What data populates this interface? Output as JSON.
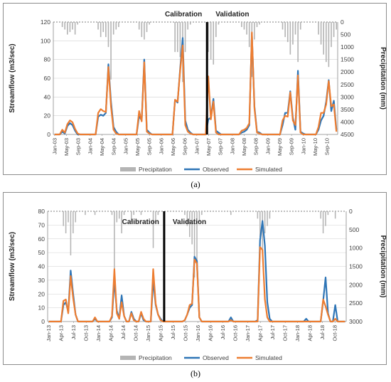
{
  "captions": [
    "(a)",
    "(b)"
  ],
  "colors": {
    "observed": "#2e75b6",
    "simulated": "#ed7d31",
    "precip": "#b4b4b4",
    "divider": "#000000",
    "grid": "#d0d0d0",
    "axis": "#404040"
  },
  "chart_data": [
    {
      "type": "line",
      "ylabel": "Streamflow (m3/sec)",
      "y2label": "Precipitation (mm)",
      "ylim": [
        0,
        120
      ],
      "yticks": [
        0,
        20,
        40,
        60,
        80,
        100,
        120
      ],
      "y2lim": [
        4500,
        0
      ],
      "y2ticks": [
        0,
        500,
        1000,
        1500,
        2000,
        2500,
        3000,
        3500,
        4000,
        4500
      ],
      "y2_inverted": true,
      "x_start": "Jan-03",
      "x_tick_labels": [
        "Jan-03",
        "May-03",
        "Sep-03",
        "Jan-04",
        "May-04",
        "Sep-04",
        "Jan-05",
        "May-05",
        "Sep-05",
        "Jan-06",
        "May-06",
        "Sep-06",
        "Jan-07",
        "May-07",
        "Sep-07",
        "Jan-08",
        "May-08",
        "Sep-08",
        "Jan-09",
        "May-09",
        "Sep-09",
        "Jan-10",
        "May-10",
        "Sep-10"
      ],
      "split_index": 60,
      "split_labels": [
        "Calibration",
        "Validation"
      ],
      "legend": [
        "Precipitation",
        "Observed",
        "Simulated"
      ],
      "legend_position": "bottom",
      "grid": true,
      "series": [
        {
          "name": "Observed",
          "values": [
            0,
            0,
            0,
            3,
            1,
            9,
            12,
            10,
            4,
            0,
            0,
            0,
            0,
            0,
            0,
            0,
            0,
            19,
            21,
            20,
            23,
            75,
            35,
            8,
            3,
            0,
            0,
            0,
            0,
            0,
            0,
            0,
            0,
            20,
            15,
            80,
            5,
            2,
            0,
            0,
            0,
            0,
            0,
            0,
            0,
            0,
            0,
            37,
            34,
            70,
            103,
            15,
            5,
            2,
            0,
            0,
            0,
            0,
            0,
            0,
            16,
            18,
            38,
            4,
            2,
            0,
            0,
            0,
            0,
            0,
            0,
            0,
            0,
            2,
            3,
            5,
            10,
            108,
            30,
            3,
            2,
            0,
            0,
            0,
            0,
            0,
            0,
            0,
            0,
            10,
            23,
            23,
            46,
            18,
            5,
            68,
            3,
            1,
            0,
            0,
            0,
            0,
            0,
            5,
            15,
            20,
            35,
            58,
            25,
            36,
            5
          ]
        },
        {
          "name": "Simulated",
          "values": [
            0,
            0,
            0,
            5,
            2,
            11,
            15,
            13,
            6,
            1,
            0,
            0,
            0,
            0,
            0,
            0,
            0,
            23,
            27,
            25,
            24,
            72,
            30,
            5,
            1,
            0,
            0,
            0,
            0,
            0,
            0,
            0,
            0,
            25,
            14,
            77,
            3,
            1,
            0,
            0,
            0,
            0,
            0,
            0,
            0,
            0,
            0,
            37,
            35,
            68,
            95,
            10,
            3,
            1,
            0,
            0,
            0,
            0,
            0,
            0,
            62,
            16,
            35,
            2,
            0,
            0,
            0,
            0,
            0,
            0,
            0,
            0,
            0,
            4,
            5,
            7,
            12,
            109,
            28,
            2,
            1,
            0,
            0,
            0,
            0,
            0,
            0,
            0,
            0,
            15,
            20,
            19,
            45,
            15,
            10,
            63,
            2,
            0,
            0,
            0,
            0,
            0,
            0,
            8,
            23,
            23,
            32,
            57,
            30,
            32,
            3
          ]
        },
        {
          "name": "Precipitation",
          "values": [
            0,
            0,
            0,
            200,
            300,
            500,
            400,
            300,
            500,
            100,
            0,
            0,
            0,
            0,
            0,
            0,
            0,
            300,
            600,
            400,
            600,
            1000,
            2300,
            500,
            300,
            200,
            0,
            0,
            0,
            0,
            0,
            0,
            0,
            300,
            600,
            700,
            400,
            100,
            0,
            0,
            0,
            0,
            0,
            0,
            0,
            0,
            0,
            1200,
            1200,
            1400,
            2400,
            1200,
            300,
            100,
            0,
            0,
            0,
            0,
            0,
            0,
            1200,
            1500,
            1700,
            600,
            100,
            0,
            0,
            0,
            0,
            0,
            0,
            0,
            0,
            200,
            300,
            500,
            1000,
            2200,
            700,
            200,
            100,
            0,
            0,
            0,
            0,
            0,
            0,
            0,
            0,
            300,
            600,
            800,
            1300,
            900,
            500,
            1600,
            300,
            0,
            0,
            0,
            0,
            0,
            0,
            500,
            900,
            1300,
            1600,
            1800,
            1000,
            600,
            300
          ]
        }
      ]
    },
    {
      "type": "line",
      "ylabel": "Streamflow (m3/sec)",
      "y2label": "Precipitation (mm)",
      "ylim": [
        0,
        80
      ],
      "yticks": [
        0,
        10,
        20,
        30,
        40,
        50,
        60,
        70,
        80
      ],
      "y2lim": [
        3000,
        0
      ],
      "y2ticks": [
        0,
        500,
        1000,
        1500,
        2000,
        2500,
        3000
      ],
      "y2_inverted": true,
      "x_start": "Jan-13",
      "x_tick_labels": [
        "Jan-13",
        "Apr-13",
        "Jul-13",
        "Oct-13",
        "Jan-14",
        "Apr-14",
        "Jul-14",
        "Oct-14",
        "Jan-15",
        "Apr-15",
        "Jul-15",
        "Oct-15",
        "Jan-16",
        "Apr-16",
        "Jul-16",
        "Oct-16",
        "Jan-17",
        "Apr-17",
        "Jul-17",
        "Oct-17",
        "Jan-18",
        "Apr-18",
        "Jul-18",
        "Oct-18"
      ],
      "split_index": 48,
      "split_labels": [
        "Calibration",
        "Validation"
      ],
      "legend": [
        "Precipitation",
        "Observed",
        "Simulated"
      ],
      "legend_position": "bottom",
      "grid": true,
      "series": [
        {
          "name": "Observed",
          "values": [
            0,
            0,
            0,
            0,
            0,
            0,
            12,
            14,
            7,
            37,
            20,
            5,
            0,
            0,
            0,
            0,
            0,
            0,
            0,
            2,
            0,
            0,
            0,
            0,
            0,
            0,
            3,
            30,
            8,
            2,
            19,
            4,
            0,
            0,
            7,
            2,
            0,
            0,
            6,
            1,
            0,
            0,
            0,
            30,
            12,
            5,
            2,
            0,
            0,
            0,
            0,
            0,
            0,
            0,
            0,
            0,
            1,
            5,
            10,
            12,
            47,
            44,
            3,
            0,
            0,
            0,
            0,
            0,
            0,
            0,
            0,
            0,
            0,
            0,
            0,
            3,
            0,
            0,
            0,
            0,
            0,
            0,
            0,
            0,
            0,
            0,
            1,
            59,
            73,
            55,
            14,
            2,
            0,
            0,
            0,
            0,
            0,
            0,
            0,
            0,
            0,
            0,
            0,
            0,
            0,
            0,
            2,
            0,
            0,
            0,
            0,
            0,
            0,
            15,
            32,
            6,
            0,
            0,
            12,
            0,
            0,
            0,
            0
          ]
        },
        {
          "name": "Simulated",
          "values": [
            0,
            0,
            0,
            0,
            0,
            0,
            15,
            16,
            6,
            33,
            17,
            5,
            0,
            0,
            0,
            0,
            0,
            0,
            0,
            3,
            0,
            0,
            0,
            0,
            0,
            0,
            4,
            38,
            6,
            2,
            14,
            4,
            0,
            0,
            6,
            1,
            0,
            0,
            7,
            2,
            0,
            0,
            0,
            38,
            13,
            5,
            1,
            0,
            0,
            0,
            0,
            0,
            0,
            0,
            0,
            0,
            1,
            5,
            12,
            13,
            45,
            42,
            3,
            0,
            0,
            0,
            0,
            0,
            0,
            0,
            0,
            0,
            0,
            0,
            0,
            1,
            0,
            0,
            0,
            0,
            0,
            0,
            0,
            0,
            0,
            0,
            0,
            54,
            52,
            16,
            3,
            0,
            0,
            0,
            0,
            0,
            0,
            0,
            0,
            0,
            0,
            0,
            0,
            0,
            0,
            0,
            0,
            0,
            0,
            0,
            0,
            0,
            0,
            16,
            11,
            5,
            0,
            0,
            2,
            0,
            0,
            0,
            0
          ]
        },
        {
          "name": "Precipitation",
          "values": [
            0,
            0,
            0,
            0,
            0,
            0,
            400,
            600,
            300,
            1200,
            600,
            300,
            0,
            0,
            0,
            100,
            0,
            0,
            0,
            100,
            0,
            0,
            0,
            0,
            0,
            0,
            100,
            1700,
            300,
            200,
            600,
            100,
            0,
            0,
            300,
            100,
            0,
            0,
            100,
            0,
            0,
            0,
            0,
            1000,
            300,
            100,
            0,
            0,
            0,
            0,
            0,
            0,
            0,
            0,
            0,
            0,
            100,
            400,
            700,
            900,
            1800,
            1600,
            300,
            100,
            0,
            0,
            0,
            0,
            0,
            0,
            0,
            0,
            0,
            0,
            0,
            100,
            0,
            0,
            0,
            0,
            0,
            0,
            0,
            0,
            0,
            0,
            200,
            700,
            1100,
            600,
            400,
            200,
            0,
            0,
            0,
            0,
            0,
            0,
            0,
            0,
            0,
            0,
            0,
            0,
            0,
            0,
            0,
            0,
            0,
            0,
            0,
            0,
            200,
            600,
            400,
            100,
            0,
            0,
            200,
            0,
            0,
            0,
            0
          ]
        }
      ]
    }
  ]
}
